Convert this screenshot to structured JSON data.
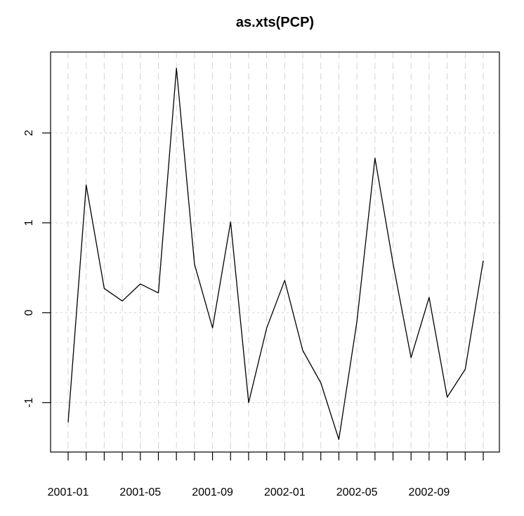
{
  "chart_data": {
    "type": "line",
    "title": "as.xts(PCP)",
    "xlabel": "",
    "ylabel": "",
    "x": [
      "2001-01",
      "2001-02",
      "2001-03",
      "2001-04",
      "2001-05",
      "2001-06",
      "2001-07",
      "2001-08",
      "2001-09",
      "2001-10",
      "2001-11",
      "2001-12",
      "2002-01",
      "2002-02",
      "2002-03",
      "2002-04",
      "2002-05",
      "2002-06",
      "2002-07",
      "2002-08",
      "2002-09",
      "2002-10",
      "2002-11",
      "2002-12"
    ],
    "series": [
      {
        "values": [
          -1.22,
          1.42,
          0.27,
          0.13,
          0.32,
          0.22,
          2.72,
          0.54,
          -0.17,
          1.01,
          -1.0,
          -0.17,
          0.36,
          -0.42,
          -0.78,
          -1.41,
          -0.1,
          1.72,
          0.55,
          -0.5,
          0.17,
          -0.94,
          -0.63,
          0.58
        ]
      }
    ],
    "x_tick_labels": [
      "2001-01",
      "2001-05",
      "2001-09",
      "2002-01",
      "2002-05",
      "2002-09"
    ],
    "y_ticks": [
      -1,
      0,
      1,
      2
    ],
    "ylim": [
      -1.55,
      2.9
    ],
    "grid": true,
    "line_color": "#000000",
    "grid_color": "#d3d3d3"
  }
}
